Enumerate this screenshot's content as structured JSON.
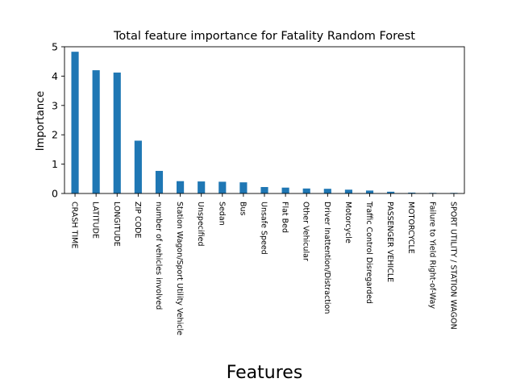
{
  "chart_data": {
    "type": "bar",
    "title": "Total feature importance for Fatality Random Forest",
    "xlabel": "Features",
    "ylabel": "Importance",
    "ylim": [
      0,
      5
    ],
    "yticks": [
      0,
      1,
      2,
      3,
      4,
      5
    ],
    "grid": false,
    "bar_color": "#1f77b4",
    "categories": [
      "CRASH TIME",
      "LATITUDE",
      "LONGITUDE",
      "ZIP CODE",
      "number of vehicles involved",
      "Station Wagon/Sport Utility Vehicle",
      "Unspecified",
      "Sedan",
      "Bus",
      "Unsafe Speed",
      "Flat Bed",
      "Other Vehicular",
      "Driver Inattention/Distraction",
      "Motorcycle",
      "Traffic Control Disregarded",
      "PASSENGER VEHICLE",
      "MOTORCYCLE",
      "Failure to Yield Right-of-Way",
      "SPORT UTILITY / STATION WAGON"
    ],
    "values": [
      4.83,
      4.2,
      4.12,
      1.8,
      0.77,
      0.42,
      0.41,
      0.4,
      0.38,
      0.22,
      0.2,
      0.17,
      0.16,
      0.13,
      0.1,
      0.06,
      0.03,
      0.02,
      0.02
    ]
  }
}
